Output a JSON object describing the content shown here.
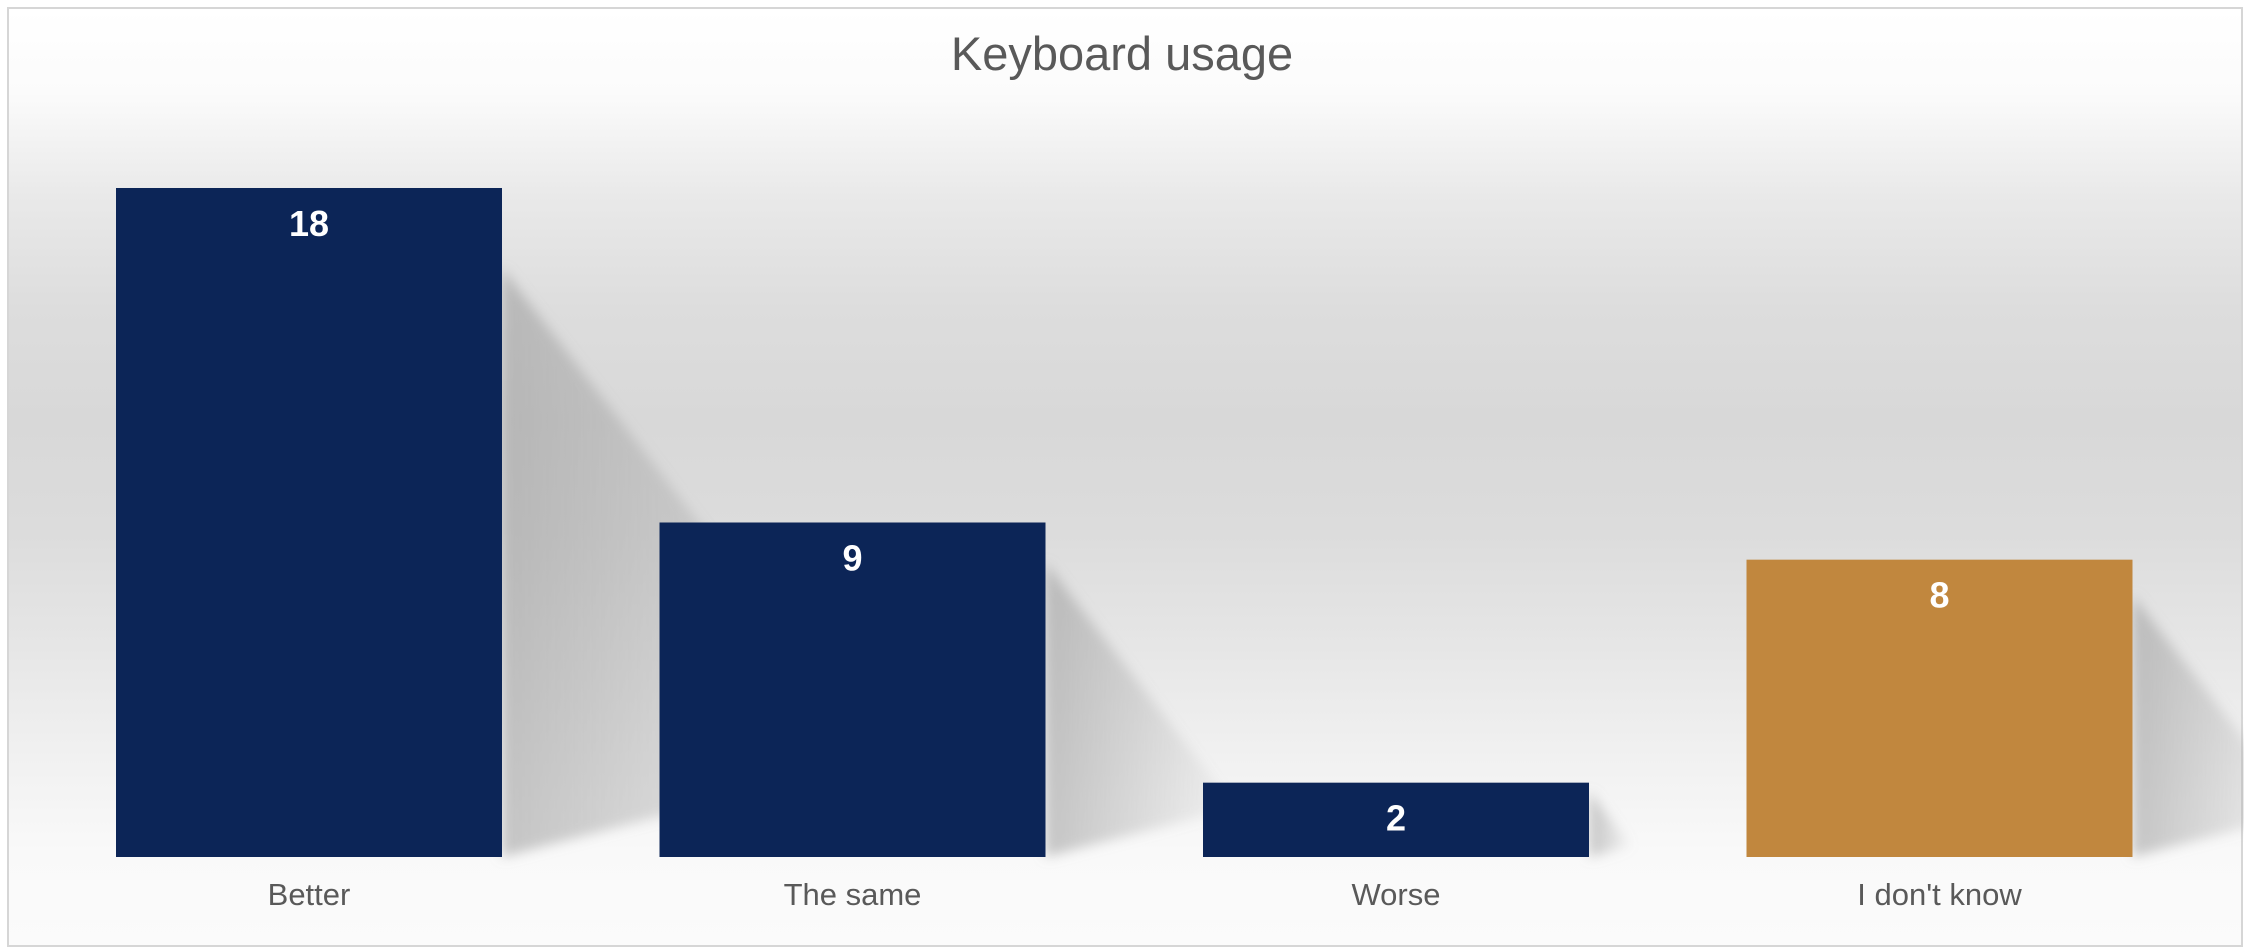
{
  "chart_data": {
    "type": "bar",
    "title": "Keyboard usage",
    "categories": [
      "Better",
      "The same",
      "Worse",
      "I don't know"
    ],
    "values": [
      18,
      9,
      2,
      8
    ],
    "bar_colors": [
      "#0c2557",
      "#0c2557",
      "#0c2557",
      "#c1873e"
    ],
    "label_color": "#ffffff",
    "ylim": [
      0,
      18
    ],
    "grid": false,
    "legend": "none",
    "data_labels": true
  }
}
